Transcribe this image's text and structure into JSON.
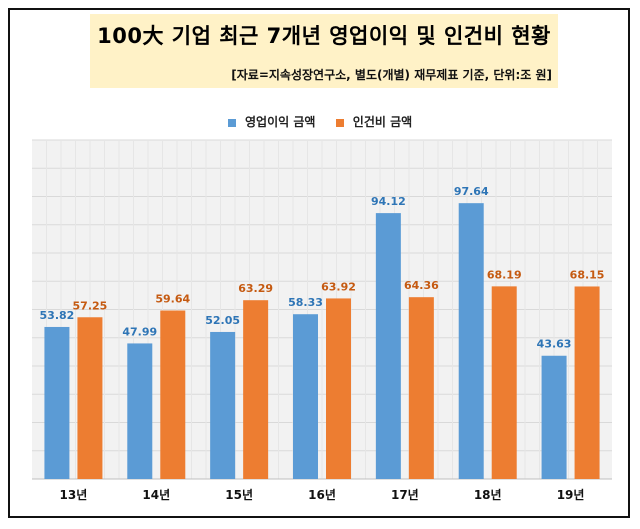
{
  "chart_data": {
    "type": "bar",
    "title": "100大 기업 최근 7개년 영업이익 및 인건비 현황",
    "subtitle": "[자료=지속성장연구소, 별도(개별) 재무제표 기준, 단위:조 원]",
    "categories": [
      "13년",
      "14년",
      "15년",
      "16년",
      "17년",
      "18년",
      "19년"
    ],
    "series": [
      {
        "name": "영업이익 금액",
        "color": "#5b9bd5",
        "label_color": "#2e75b6",
        "values": [
          53.82,
          47.99,
          52.05,
          58.33,
          94.12,
          97.64,
          43.63
        ]
      },
      {
        "name": "인건비 금액",
        "color": "#ed7d31",
        "label_color": "#c55a11",
        "values": [
          57.25,
          59.64,
          63.29,
          63.92,
          64.36,
          68.19,
          68.15
        ]
      }
    ],
    "ylim": [
      0,
      120
    ],
    "grid": true,
    "legend_position": "top-center"
  }
}
